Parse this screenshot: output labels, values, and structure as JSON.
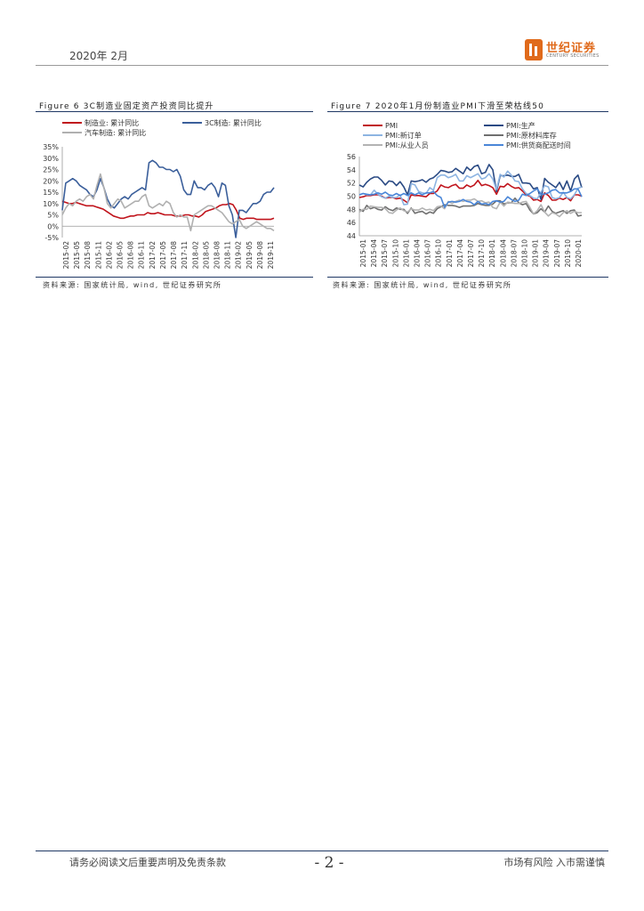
{
  "header": {
    "date": "2020年 2月",
    "logo": {
      "name_cn": "世纪证券",
      "name_en": "CENTURY SECURITIES"
    }
  },
  "figures": [
    {
      "title": "Figure 6 3C制造业固定资产投资同比提升",
      "source": "资料来源: 国家统计局, wind, 世纪证券研究所"
    },
    {
      "title": "Figure 7 2020年1月份制造业PMI下滑至荣枯线50",
      "source": "资料来源: 国家统计局, wind, 世纪证券研究所"
    }
  ],
  "chart_data": [
    {
      "type": "line",
      "title": "Figure 6 3C制造业固定资产投资同比提升",
      "ylim": [
        -5,
        35
      ],
      "y_ticks": [
        "-5%",
        "0%",
        "5%",
        "10%",
        "15%",
        "20%",
        "25%",
        "30%",
        "35%"
      ],
      "x_ticks": [
        "2015-02",
        "2015-05",
        "2015-08",
        "2015-11",
        "2016-02",
        "2016-05",
        "2016-08",
        "2016-11",
        "2017-02",
        "2017-05",
        "2017-08",
        "2017-11",
        "2018-02",
        "2018-05",
        "2018-08",
        "2018-11",
        "2019-02",
        "2019-05",
        "2019-08",
        "2019-11"
      ],
      "series": [
        {
          "name": "制造业: 累计同比",
          "color": "#c0141c",
          "values": [
            11,
            10.5,
            10,
            10,
            10.5,
            10,
            9.5,
            9,
            9,
            9,
            8.5,
            8,
            7.5,
            6.5,
            5.5,
            4.5,
            4,
            3.5,
            3.5,
            4,
            4.5,
            4.5,
            5,
            5,
            5,
            6,
            5.5,
            5.5,
            6,
            5.5,
            5,
            5,
            5,
            4.5,
            4.5,
            4.5,
            5,
            5,
            4.5,
            4.5,
            4,
            5,
            6.5,
            7,
            7.5,
            8,
            9,
            9.5,
            9.5,
            10,
            9.5,
            7,
            3.5,
            3,
            3.5,
            3.5,
            3.5,
            3,
            3,
            3,
            3,
            3,
            3.5
          ]
        },
        {
          "name": "3C制造: 累计同比",
          "color": "#3b5f9b",
          "values": [
            7,
            19,
            20,
            21,
            20,
            18,
            17,
            16,
            14,
            13,
            16,
            21,
            17,
            12,
            9,
            8,
            10,
            12,
            13,
            12,
            14,
            15,
            16,
            17,
            16,
            28,
            29,
            28,
            26,
            26,
            25,
            25,
            24,
            25,
            22,
            16,
            14,
            14,
            20,
            17,
            17,
            16,
            18,
            19,
            17,
            13,
            19,
            18,
            9,
            5,
            -5,
            7,
            7,
            6,
            8,
            10,
            10,
            11,
            14,
            15,
            15,
            17
          ]
        },
        {
          "name": "汽车制造: 累计同比",
          "color": "#b0b0b0",
          "values": [
            5,
            8,
            10,
            9,
            11,
            12,
            11,
            13,
            14,
            12,
            18,
            23,
            17,
            10,
            8,
            10,
            12,
            11,
            8,
            9,
            10,
            11,
            11,
            13,
            14,
            9,
            8,
            9,
            10,
            9,
            11,
            10,
            6,
            4,
            5,
            4,
            4,
            -2,
            5,
            6,
            7,
            8,
            9,
            9,
            8,
            7,
            6,
            4,
            2,
            1,
            2,
            3,
            0,
            -1,
            0,
            1,
            2,
            1,
            0,
            -1,
            -1,
            -2
          ]
        }
      ]
    },
    {
      "type": "line",
      "title": "Figure 7 2020年1月份制造业PMI下滑至荣枯线50",
      "ylim": [
        44,
        56
      ],
      "y_ticks": [
        "44",
        "46",
        "48",
        "50",
        "52",
        "54",
        "56"
      ],
      "x_ticks": [
        "2015-01",
        "2015-04",
        "2015-07",
        "2015-10",
        "2016-01",
        "2016-04",
        "2016-07",
        "2016-10",
        "2017-01",
        "2017-04",
        "2017-07",
        "2017-10",
        "2018-01",
        "2018-04",
        "2018-07",
        "2018-10",
        "2019-01",
        "2019-04",
        "2019-07",
        "2019-10",
        "2020-01"
      ],
      "series": [
        {
          "name": "PMI",
          "color": "#c0141c",
          "values": [
            49.8,
            49.9,
            50.1,
            50.1,
            50.2,
            50.2,
            50,
            49.7,
            49.8,
            49.8,
            49.6,
            49.7,
            49.4,
            49,
            50.2,
            50.1,
            50.1,
            50,
            49.9,
            50.4,
            50.4,
            50.8,
            51.7,
            51.4,
            51.3,
            51.6,
            51.8,
            51.2,
            51.2,
            51.7,
            51.4,
            51.7,
            52.4,
            51.6,
            51.8,
            51.6,
            51.3,
            50.3,
            51.5,
            51.4,
            51.9,
            51.5,
            51.2,
            51.3,
            50.8,
            50.2,
            50,
            49.4,
            49.5,
            49.2,
            50.5,
            50.1,
            49.4,
            49.4,
            49.7,
            49.5,
            49.8,
            49.3,
            50.2,
            50.2,
            50
          ]
        },
        {
          "name": "PMI:生产",
          "color": "#2a4a84",
          "values": [
            51.7,
            51.4,
            52.1,
            52.6,
            52.9,
            52.9,
            52.4,
            51.7,
            52.3,
            52.2,
            51.6,
            52.2,
            51.4,
            50.2,
            52.3,
            52.2,
            52.3,
            52.5,
            52.1,
            52.6,
            52.8,
            53.3,
            53.9,
            53.8,
            53.6,
            53.7,
            54.2,
            53.8,
            53.4,
            54.4,
            53.9,
            54.5,
            54.7,
            53.4,
            53.6,
            54.8,
            54,
            50.7,
            53.1,
            53.1,
            53.2,
            53,
            53,
            53.3,
            52,
            52,
            51.9,
            51.1,
            51.3,
            49.5,
            52.7,
            52.1,
            51.7,
            51.3,
            52.1,
            51,
            52.3,
            50.8,
            52.6,
            53.2,
            51.3
          ]
        },
        {
          "name": "PMI:新订单",
          "color": "#8db4e2",
          "values": [
            50.2,
            50.4,
            50.2,
            50.2,
            50.9,
            50.3,
            49.9,
            49.7,
            50,
            49.8,
            49.8,
            50.2,
            48.7,
            48.8,
            51.9,
            51.7,
            50.7,
            50.5,
            50.4,
            51.3,
            50.9,
            52.8,
            53.2,
            53.2,
            52.8,
            53,
            53.3,
            52.3,
            52.3,
            53.1,
            52.8,
            53.1,
            53.4,
            52.6,
            52.8,
            53.4,
            52.6,
            51,
            53.3,
            52.9,
            53.8,
            53.2,
            52.3,
            52.2,
            51.1,
            50.4,
            50.1,
            49.7,
            49.6,
            50.6,
            51.6,
            51.4,
            49.8,
            49.6,
            49.8,
            50.6,
            49.8,
            49.6,
            50.2,
            51.2,
            51.4
          ]
        },
        {
          "name": "PMI:原材料库存",
          "color": "#6f6f6f",
          "values": [
            48,
            47.7,
            48.6,
            48.1,
            48.3,
            48,
            47.9,
            48.4,
            48,
            47.8,
            48.2,
            48,
            48,
            47.4,
            48.2,
            47.4,
            47.6,
            47.7,
            47.3,
            47.6,
            47.4,
            48.1,
            48.4,
            48.7,
            48.6,
            48.6,
            48.5,
            48.3,
            48.5,
            48.5,
            48.5,
            48.6,
            48.9,
            48.7,
            48.6,
            48.6,
            48.8,
            49.3,
            49.3,
            48.8,
            49,
            49,
            49.7,
            49,
            48.7,
            48.9,
            47.9,
            47.3,
            47.5,
            48.1,
            47.6,
            48.5,
            47.7,
            47.4,
            47.6,
            47.8,
            47.4,
            47.8,
            47.9,
            47,
            47.1
          ]
        },
        {
          "name": "PMI:从业人员",
          "color": "#b3b3b3",
          "values": [
            47.6,
            48,
            48,
            48.5,
            48.4,
            48.3,
            48.3,
            48.1,
            47.5,
            47.4,
            47.9,
            48.2,
            47.8,
            47.6,
            48.1,
            47.9,
            47.9,
            48.2,
            47.9,
            48,
            47.8,
            48.4,
            48.5,
            48.1,
            49.2,
            48.9,
            49.2,
            49.4,
            49.2,
            49.4,
            49.4,
            49.6,
            49.2,
            49.3,
            49,
            49.1,
            48.3,
            48.1,
            49.1,
            48.5,
            49.1,
            49,
            48.9,
            48.9,
            49.1,
            49.2,
            48.3,
            47.3,
            47.8,
            48.7,
            47.6,
            47,
            47.5,
            47.3,
            46.9,
            47.5,
            47.8,
            47.4,
            47.7,
            47.5,
            47.5
          ]
        },
        {
          "name": "PMI:供货商配送时间",
          "color": "#4a86d8",
          "values": [
            50.2,
            50.4,
            50.3,
            50.2,
            50.3,
            50.5,
            50.3,
            50.6,
            50.2,
            50.1,
            50.4,
            50.1,
            50.4,
            50.1,
            50.5,
            50.2,
            50.5,
            50.2,
            50.5,
            50.5,
            50.7,
            50.1,
            49.8,
            48.3,
            49.1,
            49.2,
            49.1,
            49.2,
            49.5,
            49.2,
            49.1,
            48.7,
            49.2,
            48.8,
            48.9,
            48.7,
            49.2,
            49.3,
            49.1,
            49.2,
            49.9,
            49.5,
            49.2,
            49.4,
            50.3,
            50.1,
            50.4,
            50.8,
            51.1,
            50.3,
            50.3,
            50.5,
            50.9,
            51,
            50.5,
            50.5,
            50.5,
            50.7,
            51.1,
            51.1,
            49.9
          ]
        }
      ]
    }
  ],
  "footer": {
    "disclaimer": "请务必阅读文后重要声明及免责条款",
    "page": "- 2 -",
    "risk": "市场有风险  入市需谨慎"
  }
}
